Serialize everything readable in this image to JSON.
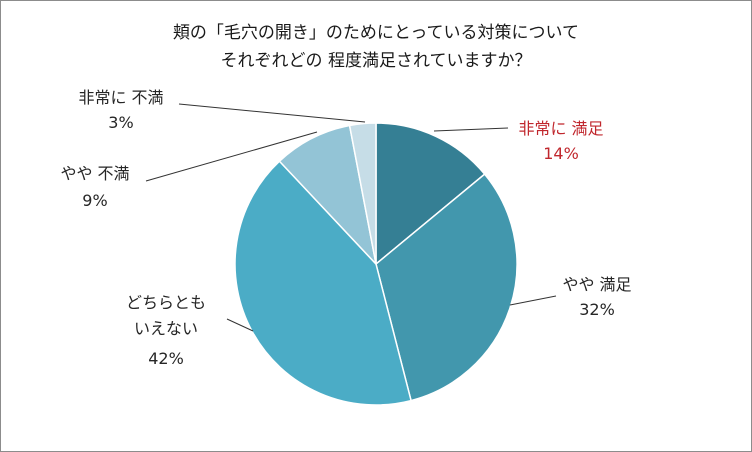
{
  "chart_data": {
    "type": "pie",
    "title_lines": [
      "頬の「毛穴の開き」のためにとっている対策について",
      "それぞれどの 程度満足されていますか？"
    ],
    "start_angle_deg": 0,
    "direction": "clockwise",
    "slices": [
      {
        "label_lines": [
          "非常に 満足"
        ],
        "value": 14,
        "value_label": "14%",
        "color": "#357f94",
        "label_color": "#c0272d"
      },
      {
        "label_lines": [
          "やや 満足"
        ],
        "value": 32,
        "value_label": "32%",
        "color": "#4297ad",
        "label_color": "#262626"
      },
      {
        "label_lines": [
          "どちらとも",
          "いえない"
        ],
        "value": 42,
        "value_label": "42%",
        "color": "#4bacc6",
        "label_color": "#262626"
      },
      {
        "label_lines": [
          "やや 不満"
        ],
        "value": 9,
        "value_label": "9%",
        "color": "#93c4d6",
        "label_color": "#262626"
      },
      {
        "label_lines": [
          "非常に 不満"
        ],
        "value": 3,
        "value_label": "3%",
        "color": "#c6dde7",
        "label_color": "#262626"
      }
    ]
  }
}
